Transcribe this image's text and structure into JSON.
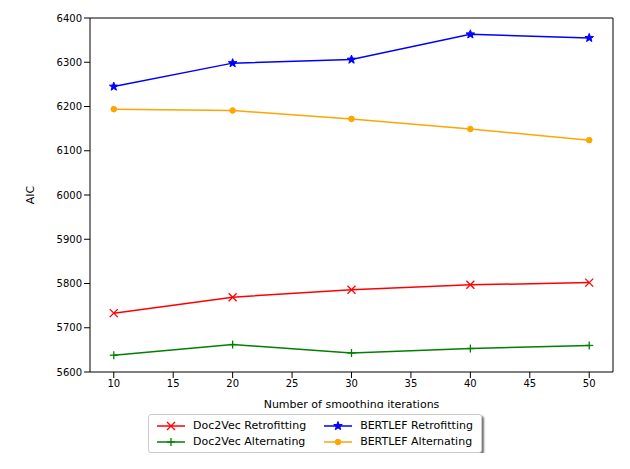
{
  "chart_data": {
    "type": "line",
    "x_label": "Number of smoothing iterations",
    "y_label": "AIC",
    "x": [
      10,
      20,
      30,
      40,
      50
    ],
    "xlim": [
      8,
      52
    ],
    "xticks": [
      10,
      15,
      20,
      25,
      30,
      35,
      40,
      45,
      50
    ],
    "ylim": [
      5600,
      6400
    ],
    "yticks": [
      5600,
      5700,
      5800,
      5900,
      6000,
      6100,
      6200,
      6300,
      6400
    ],
    "grid": false,
    "legend": "bottom",
    "series": [
      {
        "name": "Doc2Vec Retrofitting",
        "color": "#ff0000",
        "marker": "x",
        "values": [
          5733,
          5769,
          5786,
          5797,
          5802
        ]
      },
      {
        "name": "Doc2Vec Alternating",
        "color": "#008000",
        "marker": "plus",
        "values": [
          5638,
          5662,
          5643,
          5653,
          5660
        ]
      },
      {
        "name": "BERTLEF Retrofitting",
        "color": "#0000ff",
        "marker": "star",
        "values": [
          6245,
          6298,
          6306,
          6363,
          6355
        ]
      },
      {
        "name": "BERTLEF Alternating",
        "color": "#ffa500",
        "marker": "circle",
        "values": [
          6194,
          6191,
          6172,
          6149,
          6124
        ]
      }
    ]
  }
}
